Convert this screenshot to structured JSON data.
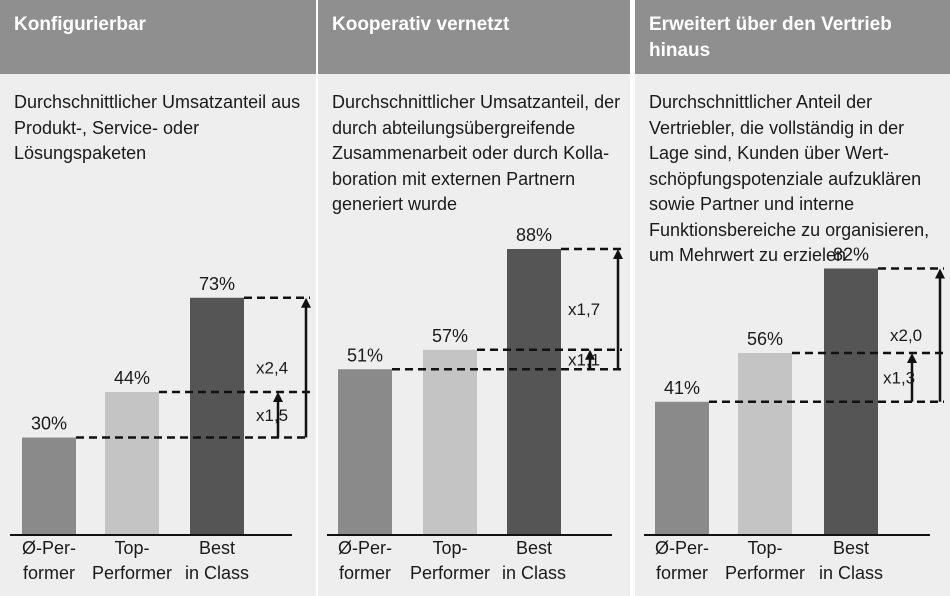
{
  "colors": {
    "header_bg": "#8f8f8f",
    "panel_bg": "#eeeeee",
    "avg_bar": "#8a8a8a",
    "top_bar": "#c4c4c4",
    "best_bar": "#555555",
    "line": "#111111"
  },
  "chart_data": [
    {
      "type": "bar",
      "title": "Konfigurierbar",
      "description": "Durchschnittlicher Umsatzanteil aus Produkt-, Service- oder Lösungspaketen",
      "categories": [
        [
          "Ø-Per-",
          "former"
        ],
        [
          "Top-",
          "Performer"
        ],
        [
          "Best",
          "in Class"
        ]
      ],
      "values": [
        30,
        44,
        73
      ],
      "value_labels": [
        "30%",
        "44%",
        "73%"
      ],
      "multipliers": [
        {
          "label": "x1,5",
          "from_index": 0,
          "to_index": 1
        },
        {
          "label": "x2,4",
          "from_index": 0,
          "to_index": 2
        }
      ],
      "ylim": [
        0,
        100
      ]
    },
    {
      "type": "bar",
      "title": "Kooperativ vernetzt",
      "description": "Durchschnittlicher Umsatzanteil, der durch abteilungsübergreifende Zusammenarbeit oder durch Kolla-boration mit externen Partnern generiert wurde",
      "categories": [
        [
          "Ø-Per-",
          "former"
        ],
        [
          "Top-",
          "Performer"
        ],
        [
          "Best",
          "in Class"
        ]
      ],
      "values": [
        51,
        57,
        88
      ],
      "value_labels": [
        "51%",
        "57%",
        "88%"
      ],
      "multipliers": [
        {
          "label": "x1,1",
          "from_index": 0,
          "to_index": 1
        },
        {
          "label": "x1,7",
          "from_index": 0,
          "to_index": 2
        }
      ],
      "ylim": [
        0,
        100
      ]
    },
    {
      "type": "bar",
      "title": "Erweitert über den Vertrieb hinaus",
      "description": "Durchschnittlicher Anteil der Vertriebler, die vollständig in der Lage sind, Kunden über Wert-schöpfungspotenziale aufzuklären sowie Partner und interne Funktionsbereiche zu organisieren, um Mehrwert zu erzielen",
      "categories": [
        [
          "Ø-Per-",
          "former"
        ],
        [
          "Top-",
          "Performer"
        ],
        [
          "Best",
          "in Class"
        ]
      ],
      "values": [
        41,
        56,
        82
      ],
      "value_labels": [
        "41%",
        "56%",
        "82%"
      ],
      "multipliers": [
        {
          "label": "x1,3",
          "from_index": 0,
          "to_index": 1
        },
        {
          "label": "x2,0",
          "from_index": 0,
          "to_index": 2
        }
      ],
      "ylim": [
        0,
        100
      ]
    }
  ]
}
